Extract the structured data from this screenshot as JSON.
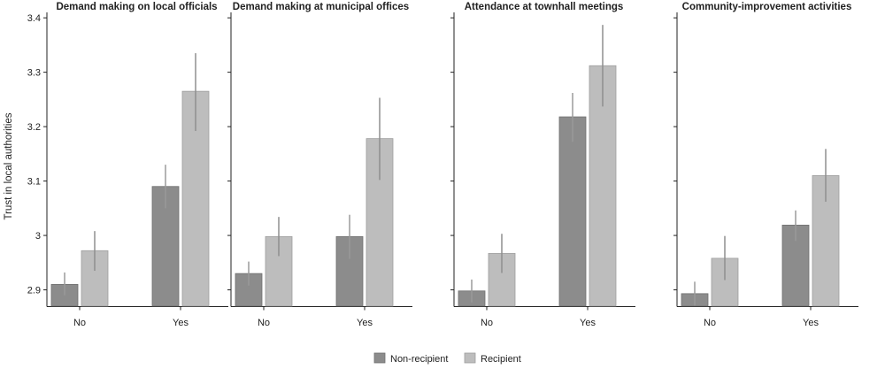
{
  "chart_data": {
    "type": "bar",
    "ylabel": "Trust in local authorities",
    "ylim": [
      2.87,
      3.41
    ],
    "yticks": [
      2.9,
      3.0,
      3.1,
      3.2,
      3.3,
      3.4
    ],
    "ytick_labels": [
      "2.9",
      "3",
      "3.1",
      "3.2",
      "3.3",
      "3.4"
    ],
    "categories": [
      "No",
      "Yes"
    ],
    "legend": {
      "position": "bottom-center",
      "entries": [
        {
          "name": "Non-recipient",
          "color": "#8c8c8c"
        },
        {
          "name": "Recipient",
          "color": "#bdbdbd"
        }
      ]
    },
    "panels": [
      {
        "title": "Demand making on local officials",
        "series": [
          {
            "name": "Non-recipient",
            "values": [
              2.91,
              3.09
            ],
            "ci_low": [
              2.89,
              3.05
            ],
            "ci_high": [
              2.932,
              3.13
            ]
          },
          {
            "name": "Recipient",
            "values": [
              2.972,
              3.265
            ],
            "ci_low": [
              2.935,
              3.192
            ],
            "ci_high": [
              3.008,
              3.335
            ]
          }
        ]
      },
      {
        "title": "Demand making at municipal offices",
        "series": [
          {
            "name": "Non-recipient",
            "values": [
              2.93,
              2.998
            ],
            "ci_low": [
              2.908,
              2.957
            ],
            "ci_high": [
              2.952,
              3.038
            ]
          },
          {
            "name": "Recipient",
            "values": [
              2.998,
              3.178
            ],
            "ci_low": [
              2.962,
              3.102
            ],
            "ci_high": [
              3.034,
              3.253
            ]
          }
        ]
      },
      {
        "title": "Attendance at townhall meetings",
        "series": [
          {
            "name": "Non-recipient",
            "values": [
              2.898,
              3.218
            ],
            "ci_low": [
              2.877,
              3.172
            ],
            "ci_high": [
              2.919,
              3.262
            ]
          },
          {
            "name": "Recipient",
            "values": [
              2.967,
              3.312
            ],
            "ci_low": [
              2.931,
              3.237
            ],
            "ci_high": [
              3.003,
              3.387
            ]
          }
        ]
      },
      {
        "title": "Community-improvement activities",
        "series": [
          {
            "name": "Non-recipient",
            "values": [
              2.893,
              3.019
            ],
            "ci_low": [
              2.871,
              2.99
            ],
            "ci_high": [
              2.915,
              3.046
            ]
          },
          {
            "name": "Recipient",
            "values": [
              2.958,
              3.11
            ],
            "ci_low": [
              2.918,
              3.062
            ],
            "ci_high": [
              2.999,
              3.159
            ]
          }
        ]
      }
    ]
  }
}
